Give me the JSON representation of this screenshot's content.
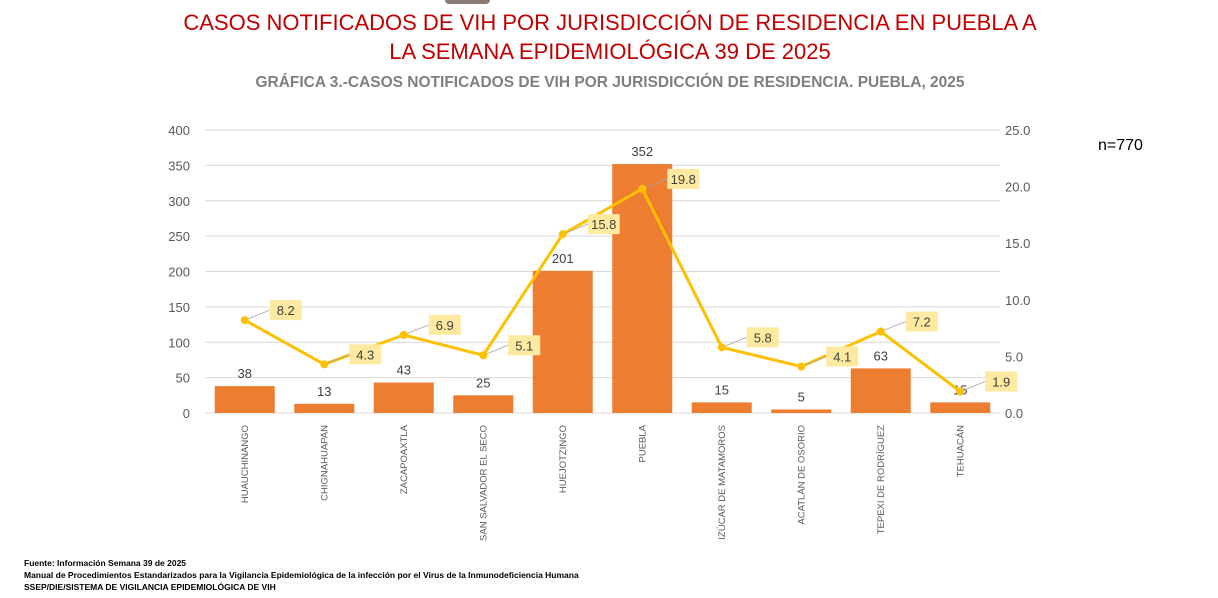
{
  "title": "CASOS NOTIFICADOS DE VIH POR JURISDICCIÓN DE RESIDENCIA EN  PUEBLA A LA SEMANA EPIDEMIOLÓGICA 39 DE 2025",
  "n_label": "n=770",
  "footer": [
    "Fuente: Información Semana 39 de 2025",
    "Manual de Procedimientos Estandarizados para la Vigilancia Epidemiológica de la infección por el Virus de la Inmunodeficiencia Humana",
    "SSEP/DIE/SISTEMA DE VIGILANCIA EPIDEMIOLÓGICA DE VIH"
  ],
  "chart_data": {
    "type": "bar+line",
    "title": "GRÁFICA 3.-CASOS NOTIFICADOS DE VIH POR JURISDICCIÓN DE RESIDENCIA. PUEBLA, 2025",
    "categories": [
      "HUAUCHINANGO",
      "CHIGNAHUAPAN",
      "ZACAPOAXTLA",
      "SAN SALVADOR EL SECO",
      "HUEJOTZINGO",
      "PUEBLA",
      "IZÚCAR DE MATAMOROS",
      "ACATLÁN DE OSORIO",
      "TEPEXI DE RODRÍGUEZ",
      "TEHUACÁN"
    ],
    "series": [
      {
        "type": "bar",
        "axis": "left",
        "values": [
          38,
          13,
          43,
          25,
          201,
          352,
          15,
          5,
          63,
          15
        ],
        "color": "#ed7d31"
      },
      {
        "type": "line",
        "axis": "right",
        "values": [
          8.2,
          4.3,
          6.9,
          5.1,
          15.8,
          19.8,
          5.8,
          4.1,
          7.2,
          1.9
        ],
        "color": "#ffc000",
        "label_bg": "#fde9a0"
      }
    ],
    "ylim_left": [
      0,
      400
    ],
    "yticks_left": [
      "0",
      "50",
      "100",
      "150",
      "200",
      "250",
      "300",
      "350",
      "400"
    ],
    "ylim_right": [
      0,
      25
    ],
    "yticks_right": [
      "0.0",
      "5.0",
      "10.0",
      "15.0",
      "20.0",
      "25.0"
    ],
    "grid": true
  }
}
